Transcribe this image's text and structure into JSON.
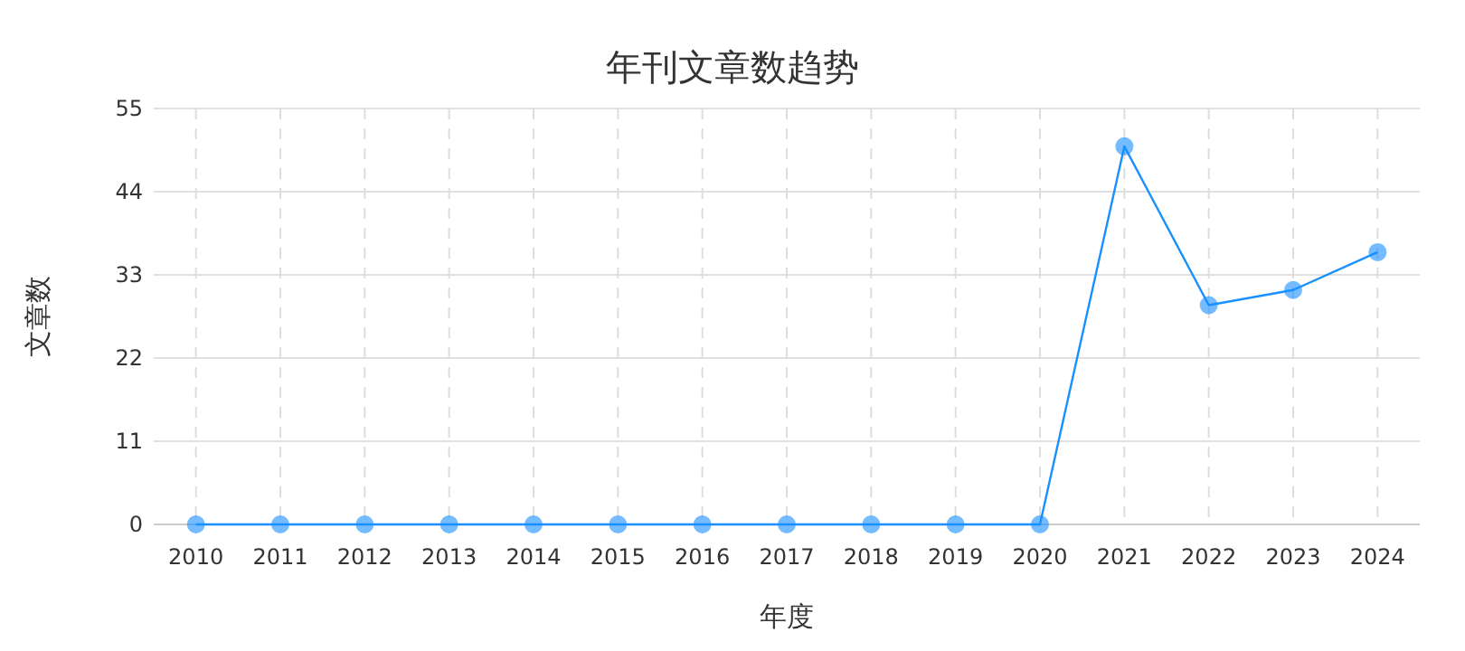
{
  "chart_data": {
    "type": "line",
    "title": "年刊文章数趋势",
    "xlabel": "年度",
    "ylabel": "文章数",
    "categories": [
      "2010",
      "2011",
      "2012",
      "2013",
      "2014",
      "2015",
      "2016",
      "2017",
      "2018",
      "2019",
      "2020",
      "2021",
      "2022",
      "2023",
      "2024"
    ],
    "series": [
      {
        "color": "#1890ff",
        "values": [
          0,
          0,
          0,
          0,
          0,
          0,
          0,
          0,
          0,
          0,
          0,
          50,
          29,
          31,
          36
        ]
      }
    ],
    "ylim": [
      0,
      55
    ],
    "yticks": [
      0,
      11,
      22,
      33,
      44,
      55
    ],
    "grid": true,
    "marker": "circle",
    "line_style": "solid"
  }
}
